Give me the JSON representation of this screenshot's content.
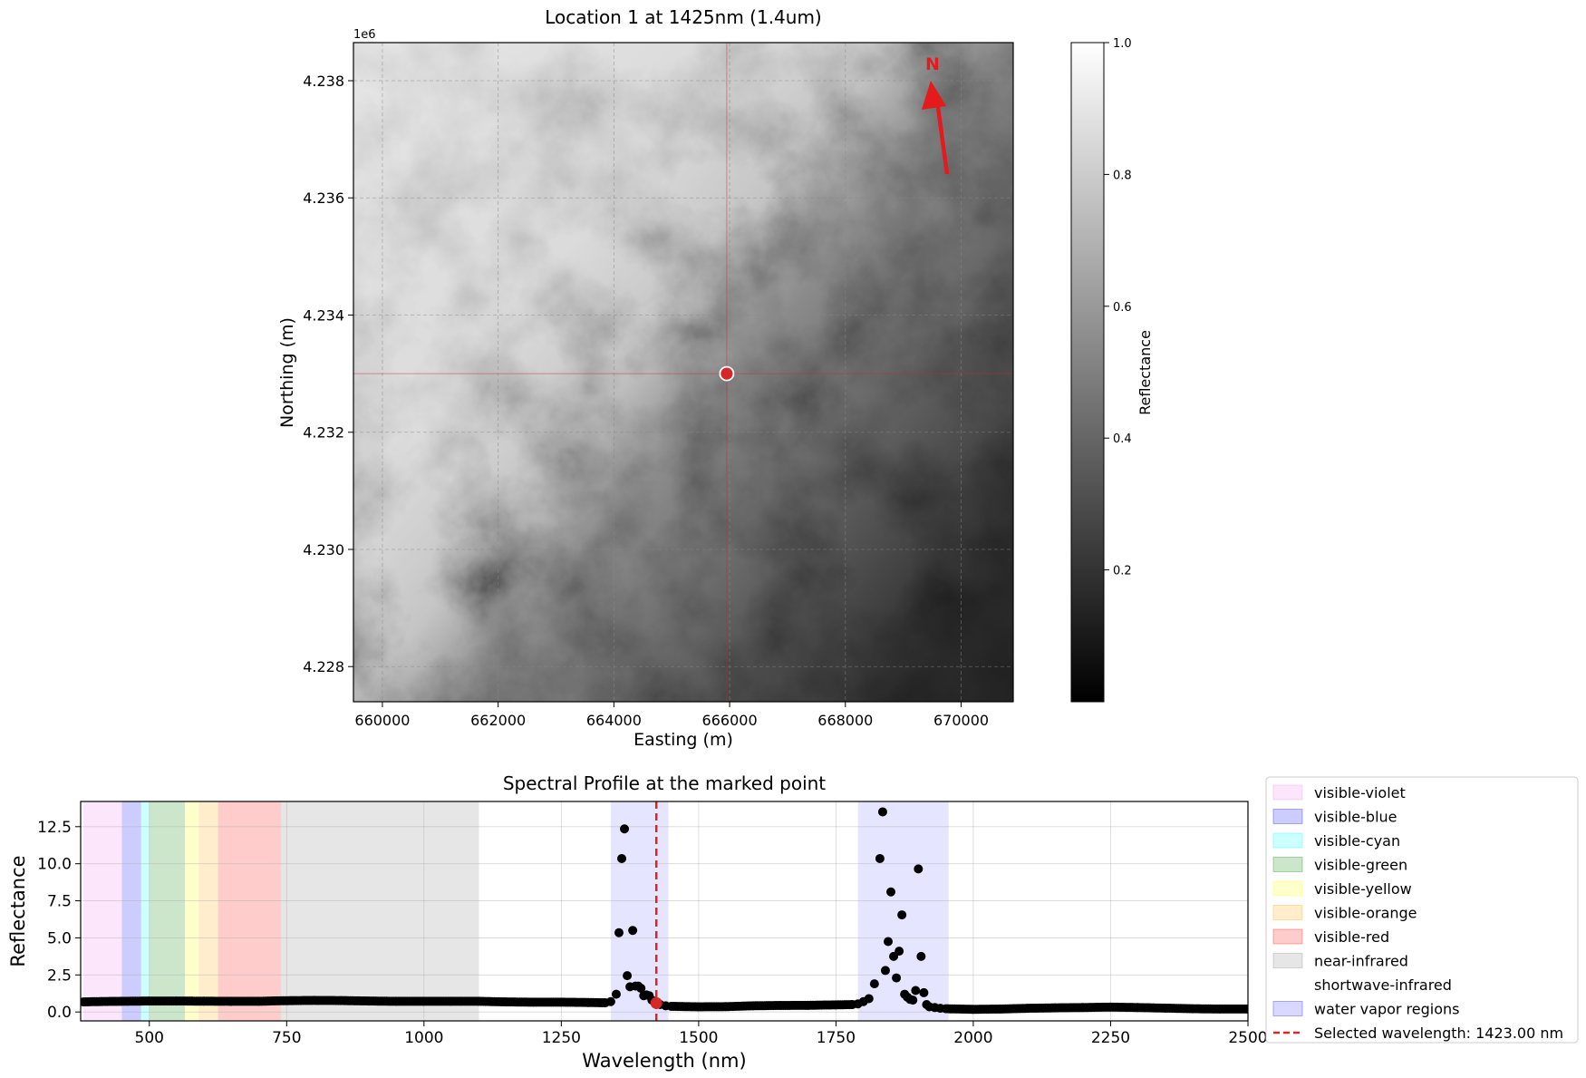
{
  "colors": {
    "marker": "#d62728",
    "crosshair": "#d62728",
    "points": "#000000",
    "north_arrow": "#e41a1c",
    "legend_border": "#cccccc"
  },
  "map": {
    "north_label": "N",
    "marked_point": {
      "easting": 665950,
      "northing": 4233000
    }
  },
  "colorbar": {
    "label": "Reflectance",
    "ticks": [
      "0.2",
      "0.4",
      "0.6",
      "0.8",
      "1.0"
    ],
    "tick_values": [
      0.2,
      0.4,
      0.6,
      0.8,
      1.0
    ],
    "range": [
      0.0,
      1.0
    ],
    "colormap": "gray"
  },
  "chart_data": [
    {
      "type": "heatmap",
      "title": "Location 1 at 1425nm (1.4um)",
      "xlabel": "Easting (m)",
      "ylabel": "Northing (m)",
      "offset_label": "1e6",
      "xlim": [
        659500,
        670900
      ],
      "ylim": [
        4227400,
        4238650
      ],
      "x_ticks": [
        660000,
        662000,
        664000,
        666000,
        668000,
        670000
      ],
      "x_tick_labels": [
        "660000",
        "662000",
        "664000",
        "666000",
        "668000",
        "670000"
      ],
      "y_ticks": [
        4228000,
        4230000,
        4232000,
        4234000,
        4236000,
        4238000
      ],
      "y_tick_labels": [
        "4.228",
        "4.230",
        "4.232",
        "4.234",
        "4.236",
        "4.238"
      ],
      "grid": true
    },
    {
      "type": "scatter",
      "title": "Spectral Profile at the marked point",
      "xlabel": "Wavelength (nm)",
      "ylabel": "Reflectance",
      "xlim": [
        375,
        2500
      ],
      "ylim": [
        -0.6,
        14.2
      ],
      "x_ticks": [
        500,
        750,
        1000,
        1250,
        1500,
        1750,
        2000,
        2250,
        2500
      ],
      "x_tick_labels": [
        "500",
        "750",
        "1000",
        "1250",
        "1500",
        "1750",
        "2000",
        "2250",
        "2500"
      ],
      "y_ticks": [
        0,
        2.5,
        5,
        7.5,
        10,
        12.5
      ],
      "y_tick_labels": [
        "0.0",
        "2.5",
        "5.0",
        "7.5",
        "10.0",
        "12.5"
      ],
      "grid": true,
      "legend_position": "right",
      "regions": [
        {
          "name": "visible-violet",
          "start": 380,
          "end": 450,
          "color": "#ee82ee",
          "alpha": 0.2
        },
        {
          "name": "visible-blue",
          "start": 450,
          "end": 485,
          "color": "#0000ff",
          "alpha": 0.2
        },
        {
          "name": "visible-cyan",
          "start": 485,
          "end": 500,
          "color": "#00ffff",
          "alpha": 0.2
        },
        {
          "name": "visible-green",
          "start": 500,
          "end": 565,
          "color": "#008000",
          "alpha": 0.2
        },
        {
          "name": "visible-yellow",
          "start": 565,
          "end": 590,
          "color": "#ffff00",
          "alpha": 0.2
        },
        {
          "name": "visible-orange",
          "start": 590,
          "end": 625,
          "color": "#ffa500",
          "alpha": 0.2
        },
        {
          "name": "visible-red",
          "start": 625,
          "end": 740,
          "color": "#ff0000",
          "alpha": 0.2
        },
        {
          "name": "near-infrared",
          "start": 740,
          "end": 1100,
          "color": "#808080",
          "alpha": 0.2
        },
        {
          "name": "shortwave-infrared",
          "start": 1100,
          "end": 2500,
          "color": "#ffffff",
          "alpha": 0.0
        },
        {
          "name": "water vapor regions",
          "start": 1340,
          "end": 1445,
          "color": "#0000ff",
          "alpha": 0.1
        },
        {
          "name": "water vapor regions",
          "start": 1790,
          "end": 1955,
          "color": "#0000ff",
          "alpha": 0.1
        }
      ],
      "selected_wavelength": 1423,
      "selected_label": "Selected wavelength: 1423.00 nm",
      "selected_reflectance": 0.6,
      "series": [
        {
          "name": "profile",
          "points": [
            [
              380,
              0.68
            ],
            [
              400,
              0.7
            ],
            [
              450,
              0.72
            ],
            [
              500,
              0.74
            ],
            [
              550,
              0.74
            ],
            [
              600,
              0.73
            ],
            [
              650,
              0.72
            ],
            [
              700,
              0.72
            ],
            [
              740,
              0.76
            ],
            [
              800,
              0.78
            ],
            [
              850,
              0.77
            ],
            [
              900,
              0.74
            ],
            [
              950,
              0.72
            ],
            [
              1000,
              0.72
            ],
            [
              1050,
              0.72
            ],
            [
              1100,
              0.72
            ],
            [
              1150,
              0.68
            ],
            [
              1200,
              0.66
            ],
            [
              1250,
              0.66
            ],
            [
              1300,
              0.64
            ],
            [
              1330,
              0.62
            ],
            [
              1340,
              0.7
            ],
            [
              1350,
              1.2
            ],
            [
              1355,
              5.35
            ],
            [
              1360,
              10.35
            ],
            [
              1365,
              12.35
            ],
            [
              1370,
              2.45
            ],
            [
              1375,
              1.7
            ],
            [
              1380,
              5.5
            ],
            [
              1385,
              1.75
            ],
            [
              1390,
              1.75
            ],
            [
              1395,
              1.6
            ],
            [
              1400,
              1.1
            ],
            [
              1405,
              1.15
            ],
            [
              1410,
              1.1
            ],
            [
              1415,
              0.8
            ],
            [
              1420,
              0.65
            ],
            [
              1430,
              0.5
            ],
            [
              1440,
              0.42
            ],
            [
              1450,
              0.38
            ],
            [
              1500,
              0.35
            ],
            [
              1550,
              0.36
            ],
            [
              1600,
              0.42
            ],
            [
              1650,
              0.44
            ],
            [
              1700,
              0.45
            ],
            [
              1750,
              0.48
            ],
            [
              1780,
              0.5
            ],
            [
              1790,
              0.55
            ],
            [
              1800,
              0.7
            ],
            [
              1810,
              0.9
            ],
            [
              1820,
              1.9
            ],
            [
              1830,
              10.35
            ],
            [
              1835,
              13.5
            ],
            [
              1840,
              2.8
            ],
            [
              1845,
              4.75
            ],
            [
              1850,
              8.1
            ],
            [
              1855,
              3.75
            ],
            [
              1860,
              2.3
            ],
            [
              1865,
              4.1
            ],
            [
              1870,
              6.55
            ],
            [
              1875,
              1.2
            ],
            [
              1880,
              1.0
            ],
            [
              1885,
              0.85
            ],
            [
              1890,
              0.8
            ],
            [
              1895,
              1.45
            ],
            [
              1900,
              9.65
            ],
            [
              1905,
              3.75
            ],
            [
              1910,
              1.3
            ],
            [
              1915,
              0.5
            ],
            [
              1920,
              0.35
            ],
            [
              1930,
              0.3
            ],
            [
              1940,
              0.25
            ],
            [
              1950,
              0.22
            ],
            [
              2000,
              0.18
            ],
            [
              2050,
              0.2
            ],
            [
              2100,
              0.25
            ],
            [
              2150,
              0.28
            ],
            [
              2200,
              0.3
            ],
            [
              2250,
              0.33
            ],
            [
              2300,
              0.3
            ],
            [
              2350,
              0.26
            ],
            [
              2400,
              0.22
            ],
            [
              2450,
              0.2
            ],
            [
              2500,
              0.2
            ]
          ]
        }
      ]
    }
  ]
}
